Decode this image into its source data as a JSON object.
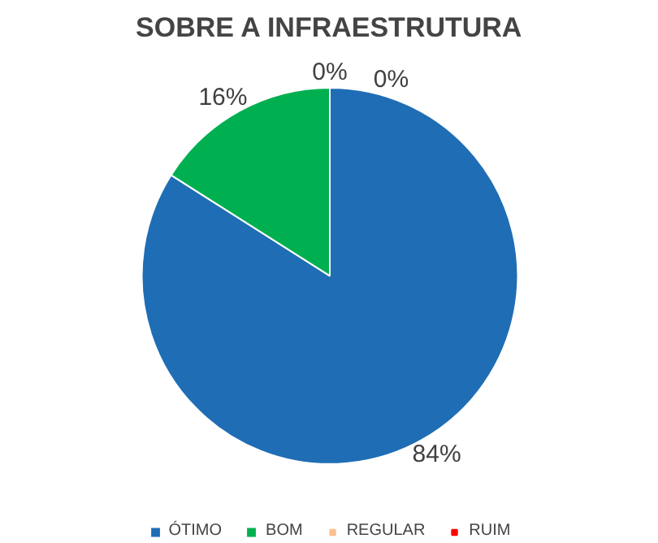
{
  "chart_data": {
    "type": "pie",
    "title": "SOBRE A INFRAESTRUTURA",
    "categories": [
      "ÓTIMO",
      "BOM",
      "REGULAR",
      "RUIM"
    ],
    "values": [
      84,
      16,
      0,
      0
    ],
    "colors": [
      "#1f6db5",
      "#00b050",
      "#fac090",
      "#ff0000"
    ],
    "value_labels": [
      "84%",
      "16%",
      "0%",
      "0%"
    ],
    "legend": "bottom"
  }
}
